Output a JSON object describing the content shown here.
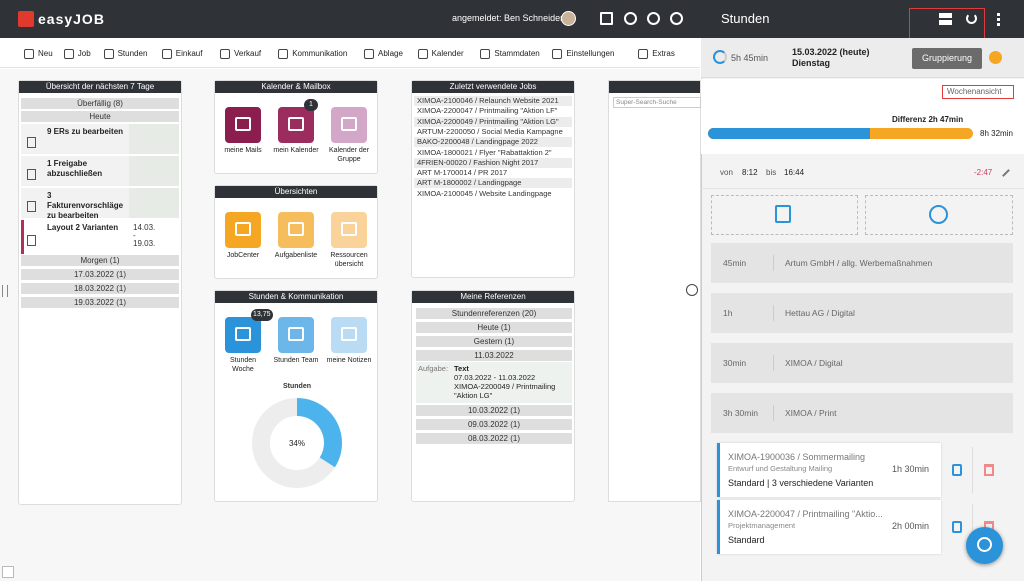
{
  "header": {
    "logo": "easyJOB",
    "user": "angemeldet: Ben Schneider"
  },
  "toolbar": [
    "Neu",
    "Job",
    "Stunden",
    "Einkauf",
    "Verkauf",
    "Kommunikation",
    "Ablage",
    "Kalender",
    "Stammdaten",
    "Einstellungen",
    "Extras"
  ],
  "overview": {
    "title": "Übersicht der nächsten 7 Tage",
    "overdue": "Überfällig (8)",
    "today": "Heute",
    "tasks": [
      "9 ERs zu bearbeiten",
      "1 Freigabe abzuschließen",
      "3 Fakturenvorschläge zu bearbeiten",
      "Layout 2 Varianten"
    ],
    "task_dates": [
      "14.03.",
      "-",
      "19.03."
    ],
    "days": [
      "Morgen (1)",
      "17.03.2022 (1)",
      "18.03.2022 (1)",
      "19.03.2022 (1)"
    ]
  },
  "calendar": {
    "title": "Kalender & Mailbox",
    "tiles": [
      {
        "label": "meine Mails"
      },
      {
        "label": "mein Kalender",
        "badge": "1"
      },
      {
        "label": "Kalender der Gruppe"
      }
    ]
  },
  "overviews": {
    "title": "Übersichten",
    "tiles": [
      {
        "label": "JobCenter"
      },
      {
        "label": "Aufgabenliste"
      },
      {
        "label": "Ressourcen übersicht"
      }
    ]
  },
  "hours": {
    "title": "Stunden & Kommunikation",
    "tiles": [
      {
        "label": "Stunden Woche",
        "badge": "13,75"
      },
      {
        "label": "Stunden Team"
      },
      {
        "label": "meine Notizen"
      }
    ],
    "chart_title": "Stunden",
    "donut": {
      "value": 34,
      "label": "34%"
    }
  },
  "recent_jobs": {
    "title": "Zuletzt verwendete Jobs",
    "items": [
      "XIMOA-2100046 / Relaunch Website 2021",
      "XIMOA-2200047 / Printmailing \"Aktion LF\"",
      "XIMOA-2200049 / Printmailing \"Aktion LG\"",
      "ARTUM-2200050 / Social Media Kampagne",
      "BAKO-2200048 / Landingpage 2022",
      "XIMOA-1800021 / Flyer \"Rabattaktion 2\"",
      "4FRIEN-00020 / Fashion Night 2017",
      "ART M-1700014 / PR 2017",
      "ART M-1800002 / Landingpage",
      "XIMOA-2100045 / Website Landingpage"
    ]
  },
  "references": {
    "title": "Meine Referenzen",
    "rows_top": [
      "Stundenreferenzen (20)",
      "Heute (1)",
      "Gestern (1)",
      "11.03.2022"
    ],
    "task_label": "Aufgabe:",
    "task_title": "Text",
    "task_dates": "07.03.2022 - 11.03.2022",
    "task_job": "XIMOA-2200049 / Printmailing \"Aktion LG\"",
    "rows_bottom": [
      "10.03.2022 (1)",
      "09.03.2022 (1)",
      "08.03.2022 (1)"
    ]
  },
  "search": {
    "placeholder": "Super-Search-Suche"
  },
  "panel": {
    "title": "Stunden",
    "total": "5h 45min",
    "date": "15.03.2022 (heute)",
    "weekday": "Dienstag",
    "grouping": "Gruppierung",
    "week_link": "Wochenansicht",
    "difference": "Differenz 2h 47min",
    "target": "8h 32min",
    "from_label": "von",
    "from": "8:12",
    "to_label": "bis",
    "to": "16:44",
    "delta": "-2:47",
    "entries": [
      {
        "duration": "45min",
        "name": "Artum GmbH / allg. Werbemaßnahmen"
      },
      {
        "duration": "1h",
        "name": "Hettau AG / Digital"
      },
      {
        "duration": "30min",
        "name": "XIMOA / Digital"
      },
      {
        "duration": "3h 30min",
        "name": "XIMOA / Print"
      }
    ],
    "cards": [
      {
        "job": "XIMOA-1900036 / Sommermailing",
        "task": "Entwurf und Gestaltung Mailing",
        "duration": "1h 30min",
        "note": "Standard | 3 verschiedene Varianten"
      },
      {
        "job": "XIMOA-2200047 / Printmailing \"Aktio...",
        "task": "Projektmanagement",
        "duration": "2h 00min",
        "note": "Standard"
      }
    ]
  }
}
